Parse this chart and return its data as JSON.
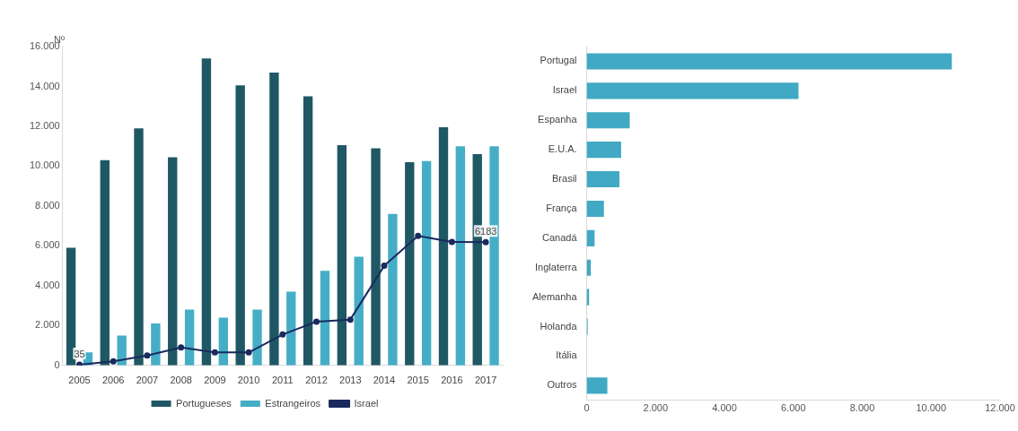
{
  "chart_data": [
    {
      "type": "bar",
      "ylabel": "Nº",
      "categories": [
        "2005",
        "2006",
        "2007",
        "2008",
        "2009",
        "2010",
        "2011",
        "2012",
        "2013",
        "2014",
        "2015",
        "2016",
        "2017"
      ],
      "series": [
        {
          "name": "Portugueses",
          "color": "#1f5864",
          "values": [
            5900,
            10300,
            11900,
            10450,
            15400,
            14050,
            14700,
            13500,
            11050,
            10900,
            10200,
            11950,
            10600
          ]
        },
        {
          "name": "Estrangeiros",
          "color": "#45aec6",
          "values": [
            650,
            1500,
            2100,
            2800,
            2400,
            2800,
            3700,
            4750,
            5450,
            7600,
            10250,
            11000,
            11000
          ]
        },
        {
          "name": "Israel",
          "type": "line",
          "color": "#1a2a5e",
          "values": [
            35,
            200,
            500,
            900,
            650,
            650,
            1550,
            2200,
            2300,
            5000,
            6500,
            6200,
            6183
          ],
          "value_labels": [
            "35",
            null,
            null,
            null,
            null,
            null,
            null,
            null,
            null,
            null,
            null,
            null,
            "6183"
          ]
        }
      ],
      "ylim": [
        0,
        16000
      ],
      "yticks": [
        0,
        {
          "value": 2000,
          "label": "2.000"
        },
        {
          "value": 4000,
          "label": "4.000"
        },
        {
          "value": 6000,
          "label": "6.000"
        },
        {
          "value": 8000,
          "label": "8.000"
        },
        {
          "value": 10000,
          "label": "10.000"
        },
        {
          "value": 12000,
          "label": "12.000"
        },
        {
          "value": 14000,
          "label": "14.000"
        },
        {
          "value": 16000,
          "label": "16.000"
        }
      ],
      "legend": "bottom",
      "marker": "circle"
    },
    {
      "type": "bar",
      "orientation": "horizontal",
      "color": "#41a9c3",
      "categories": [
        "Portugal",
        "Israel",
        "Espanha",
        "E.U.A.",
        "Brasil",
        "França",
        "Canadá",
        "Inglaterra",
        "Alemanha",
        "Holanda",
        "Itália",
        "Outros"
      ],
      "values": [
        10600,
        6150,
        1250,
        1000,
        950,
        500,
        230,
        120,
        70,
        30,
        null,
        600
      ],
      "xlim": [
        0,
        12000
      ],
      "xticks": [
        0,
        {
          "value": 2000,
          "label": "2.000"
        },
        {
          "value": 4000,
          "label": "4.000"
        },
        {
          "value": 6000,
          "label": "6.000"
        },
        {
          "value": 8000,
          "label": "8.000"
        },
        {
          "value": 10000,
          "label": "10.000"
        },
        {
          "value": 12000,
          "label": "12.000"
        }
      ]
    }
  ]
}
